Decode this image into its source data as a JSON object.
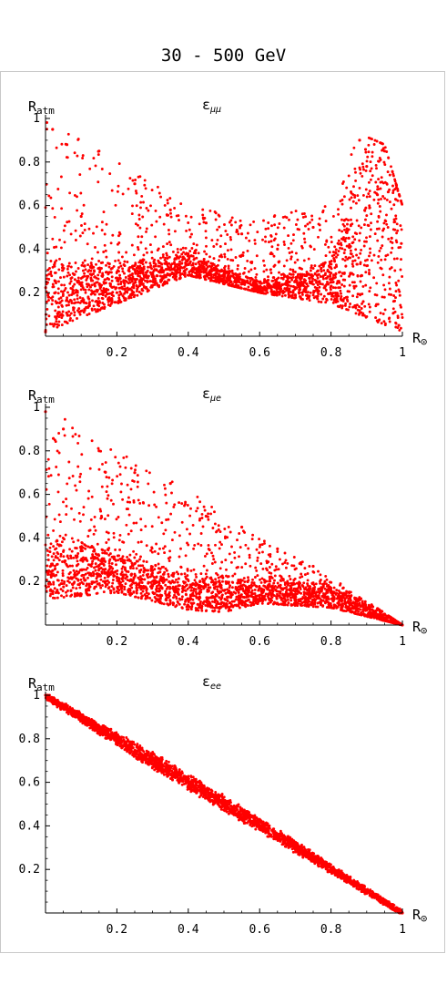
{
  "title": "30 - 500 GeV",
  "chart_data": [
    {
      "type": "scatter",
      "title": "ε_μμ",
      "title_main": "ε",
      "title_sub": "μμ",
      "ylabel": "R",
      "ylabel_sub": "atm",
      "xlabel": "R",
      "xlabel_sub": "⊙",
      "xlim": [
        0,
        1
      ],
      "ylim": [
        0,
        1
      ],
      "xticks": [
        "0.2",
        "0.4",
        "0.6",
        "0.8",
        "1"
      ],
      "yticks": [
        "0.2",
        "0.4",
        "0.6",
        "0.8",
        "1"
      ],
      "grid": false,
      "color": "#ff0000",
      "point_count": 2600,
      "points": [
        [
          0.0,
          0.02
        ],
        [
          0.02,
          0.95
        ],
        [
          0.06,
          0.88
        ],
        [
          0.1,
          0.55
        ],
        [
          0.15,
          0.85
        ],
        [
          0.2,
          0.2
        ],
        [
          0.25,
          0.7
        ],
        [
          0.3,
          0.28
        ],
        [
          0.35,
          0.58
        ],
        [
          0.4,
          0.33
        ],
        [
          0.45,
          0.52
        ],
        [
          0.5,
          0.27
        ],
        [
          0.55,
          0.47
        ],
        [
          0.6,
          0.22
        ],
        [
          0.65,
          0.4
        ],
        [
          0.7,
          0.19
        ],
        [
          0.75,
          0.5
        ],
        [
          0.8,
          0.26
        ],
        [
          0.85,
          0.45
        ],
        [
          0.88,
          0.9
        ],
        [
          0.9,
          0.78
        ],
        [
          0.93,
          0.65
        ],
        [
          0.95,
          0.85
        ],
        [
          0.97,
          0.45
        ],
        [
          0.99,
          0.05
        ]
      ],
      "envelope": {
        "lower": [
          [
            0,
            0.02
          ],
          [
            0.2,
            0.15
          ],
          [
            0.4,
            0.28
          ],
          [
            0.6,
            0.2
          ],
          [
            0.8,
            0.15
          ],
          [
            1,
            0.02
          ]
        ],
        "upper": [
          [
            0,
            1
          ],
          [
            0.2,
            0.8
          ],
          [
            0.4,
            0.6
          ],
          [
            0.6,
            0.55
          ],
          [
            0.8,
            0.6
          ],
          [
            0.88,
            0.93
          ],
          [
            0.95,
            0.88
          ],
          [
            1,
            0.6
          ]
        ],
        "band": [
          [
            0,
            0.18
          ],
          [
            0.2,
            0.24
          ],
          [
            0.4,
            0.33
          ],
          [
            0.6,
            0.22
          ],
          [
            0.8,
            0.25
          ],
          [
            0.9,
            0.5
          ],
          [
            0.95,
            0.65
          ],
          [
            1,
            0.7
          ]
        ]
      }
    },
    {
      "type": "scatter",
      "title": "ε_μe",
      "title_main": "ε",
      "title_sub": "μe",
      "ylabel": "R",
      "ylabel_sub": "atm",
      "xlabel": "R",
      "xlabel_sub": "⊙",
      "xlim": [
        0,
        1
      ],
      "ylim": [
        0,
        1
      ],
      "xticks": [
        "0.2",
        "0.4",
        "0.6",
        "0.8",
        "1"
      ],
      "yticks": [
        "0.2",
        "0.4",
        "0.6",
        "0.8",
        "1"
      ],
      "grid": false,
      "color": "#ff0000",
      "point_count": 2600,
      "points": [
        [
          0.0,
          0.98
        ],
        [
          0.02,
          0.25
        ],
        [
          0.05,
          0.9
        ],
        [
          0.1,
          0.35
        ],
        [
          0.15,
          0.8
        ],
        [
          0.2,
          0.22
        ],
        [
          0.25,
          0.7
        ],
        [
          0.3,
          0.18
        ],
        [
          0.35,
          0.65
        ],
        [
          0.4,
          0.12
        ],
        [
          0.45,
          0.5
        ],
        [
          0.5,
          0.1
        ],
        [
          0.55,
          0.45
        ],
        [
          0.6,
          0.12
        ],
        [
          0.65,
          0.35
        ],
        [
          0.7,
          0.14
        ],
        [
          0.75,
          0.27
        ],
        [
          0.8,
          0.15
        ],
        [
          0.85,
          0.15
        ],
        [
          0.9,
          0.08
        ],
        [
          0.95,
          0.05
        ],
        [
          1.0,
          0.0
        ]
      ],
      "envelope": {
        "lower": [
          [
            0,
            0.12
          ],
          [
            0.2,
            0.15
          ],
          [
            0.4,
            0.07
          ],
          [
            0.5,
            0.06
          ],
          [
            0.6,
            0.1
          ],
          [
            0.8,
            0.08
          ],
          [
            1,
            0
          ]
        ],
        "upper": [
          [
            0,
            1
          ],
          [
            0.2,
            0.8
          ],
          [
            0.4,
            0.62
          ],
          [
            0.6,
            0.4
          ],
          [
            0.8,
            0.22
          ],
          [
            1,
            0
          ]
        ],
        "band": [
          [
            0,
            0.25
          ],
          [
            0.2,
            0.25
          ],
          [
            0.4,
            0.14
          ],
          [
            0.6,
            0.15
          ],
          [
            0.8,
            0.13
          ],
          [
            1,
            0
          ]
        ]
      }
    },
    {
      "type": "scatter",
      "title": "ε_ee",
      "title_main": "ε",
      "title_sub": "ee",
      "ylabel": "R",
      "ylabel_sub": "atm",
      "xlabel": "R",
      "xlabel_sub": "⊙",
      "xlim": [
        0,
        1
      ],
      "ylim": [
        0,
        1
      ],
      "xticks": [
        "0.2",
        "0.4",
        "0.6",
        "0.8",
        "1"
      ],
      "yticks": [
        "0.2",
        "0.4",
        "0.6",
        "0.8",
        "1"
      ],
      "grid": false,
      "color": "#ff0000",
      "point_count": 2600,
      "points": [
        [
          0.0,
          1.0
        ],
        [
          0.1,
          0.9
        ],
        [
          0.2,
          0.8
        ],
        [
          0.3,
          0.7
        ],
        [
          0.4,
          0.61
        ],
        [
          0.5,
          0.5
        ],
        [
          0.6,
          0.4
        ],
        [
          0.7,
          0.3
        ],
        [
          0.8,
          0.2
        ],
        [
          0.9,
          0.1
        ],
        [
          1.0,
          0.0
        ]
      ],
      "envelope": {
        "lower": [
          [
            0,
            0.99
          ],
          [
            0.3,
            0.67
          ],
          [
            0.6,
            0.38
          ],
          [
            1,
            0
          ]
        ],
        "upper": [
          [
            0,
            1
          ],
          [
            0.3,
            0.73
          ],
          [
            0.6,
            0.43
          ],
          [
            1,
            0
          ]
        ],
        "band": [
          [
            0,
            1
          ],
          [
            0.5,
            0.5
          ],
          [
            1,
            0
          ]
        ]
      }
    }
  ]
}
